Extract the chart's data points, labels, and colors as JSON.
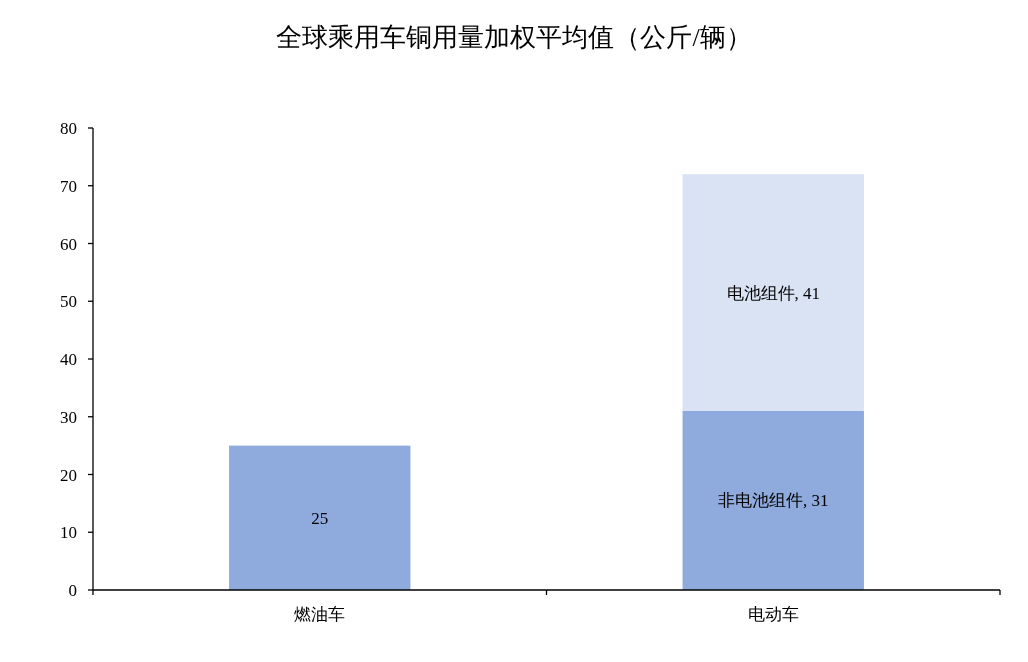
{
  "chart_data": {
    "type": "bar",
    "title": "全球乘用车铜用量加权平均值（公斤/辆）",
    "categories": [
      "燃油车",
      "电动车"
    ],
    "stacked": true,
    "series": [
      {
        "color": "#8faadc",
        "values": [
          25,
          31
        ],
        "value_labels": [
          "25",
          "非电池组件, 31"
        ]
      },
      {
        "color": "#dae3f3",
        "values": [
          null,
          41
        ],
        "value_labels": [
          null,
          "电池组件, 41"
        ]
      }
    ],
    "ylim": [
      0,
      80
    ],
    "yticks": [
      0,
      10,
      20,
      30,
      40,
      50,
      60,
      70,
      80
    ],
    "grid": false
  }
}
